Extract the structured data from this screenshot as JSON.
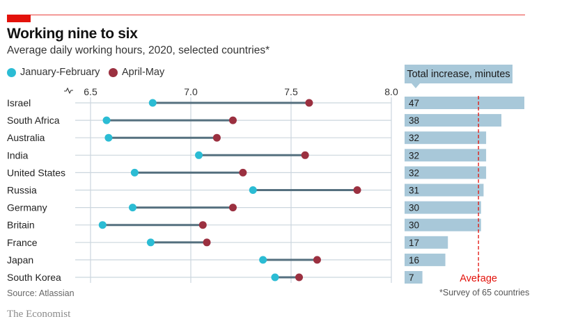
{
  "header": {
    "title": "Working nine to six",
    "subtitle": "Average daily working hours, 2020, selected countries*"
  },
  "legend": [
    {
      "label": "January-February",
      "color": "#2bbcd4"
    },
    {
      "label": "April-May",
      "color": "#9b3040"
    }
  ],
  "panel": {
    "title": "Total increase, minutes",
    "average_label": "Average",
    "footnote": "*Survey of 65 countries"
  },
  "source": "Source: Atlassian",
  "brand": "The Economist",
  "colors": {
    "jan_feb": "#2bbcd4",
    "apr_may": "#9b3040",
    "connector": "#55707f",
    "gridline": "#cbd6de",
    "bar": "#a8c8d9",
    "average": "#e3120b",
    "accent": "#e3120b"
  },
  "chart_data": [
    {
      "type": "dumbbell",
      "title": "Working nine to six",
      "subtitle": "Average daily working hours, 2020, selected countries*",
      "xlabel": "",
      "ylabel": "",
      "xlim": [
        6.5,
        8.0
      ],
      "axis_break": true,
      "x_ticks": [
        "6.5",
        "7.0",
        "7.5",
        "8.0"
      ],
      "x_tick_values": [
        6.5,
        7.0,
        7.5,
        8.0
      ],
      "grid": true,
      "legend_position": "top-left",
      "categories": [
        "Israel",
        "South Africa",
        "Australia",
        "India",
        "United States",
        "Russia",
        "Germany",
        "Britain",
        "France",
        "Japan",
        "South Korea"
      ],
      "series": [
        {
          "name": "January-February",
          "values": [
            6.81,
            6.58,
            6.59,
            7.04,
            6.72,
            7.31,
            6.71,
            6.56,
            6.8,
            7.36,
            7.42
          ]
        },
        {
          "name": "April-May",
          "values": [
            7.59,
            7.21,
            7.13,
            7.57,
            7.26,
            7.83,
            7.21,
            7.06,
            7.08,
            7.63,
            7.54
          ]
        }
      ]
    },
    {
      "type": "bar",
      "orientation": "horizontal",
      "title": "Total increase, minutes",
      "categories": [
        "Israel",
        "South Africa",
        "Australia",
        "India",
        "United States",
        "Russia",
        "Germany",
        "Britain",
        "France",
        "Japan",
        "South Korea"
      ],
      "values": [
        47,
        38,
        32,
        32,
        32,
        31,
        30,
        30,
        17,
        16,
        7
      ],
      "reference_line": {
        "label": "Average",
        "value": 29
      },
      "xlim": [
        0,
        47
      ]
    }
  ]
}
